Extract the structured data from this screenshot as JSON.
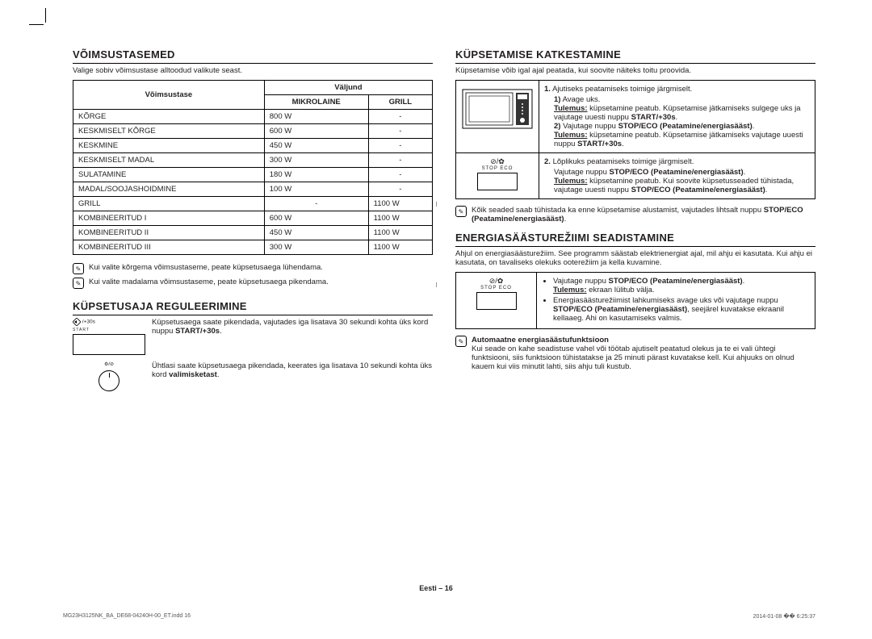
{
  "left": {
    "section1": {
      "title": "VÕIMSUSTASEMED",
      "intro": "Valige sobiv võimsustase alltoodud valikute seast.",
      "table": {
        "colgroup_header": "Väljund",
        "headers": [
          "Võimsustase",
          "MIKROLAINE",
          "GRILL"
        ],
        "rows": [
          [
            "KÕRGE",
            "800 W",
            "-"
          ],
          [
            "KESKMISELT KÕRGE",
            "600 W",
            "-"
          ],
          [
            "KESKMINE",
            "450 W",
            "-"
          ],
          [
            "KESKMISELT MADAL",
            "300 W",
            "-"
          ],
          [
            "SULATAMINE",
            "180 W",
            "-"
          ],
          [
            "MADAL/SOOJASHOIDMINE",
            "100 W",
            "-"
          ],
          [
            "GRILL",
            "-",
            "1100 W"
          ],
          [
            "KOMBINEERITUD I",
            "600 W",
            "1100 W"
          ],
          [
            "KOMBINEERITUD II",
            "450 W",
            "1100 W"
          ],
          [
            "KOMBINEERITUD III",
            "300 W",
            "1100 W"
          ]
        ]
      },
      "notes": [
        "Kui valite kõrgema võimsustaseme, peate küpsetusaega lühendama.",
        "Kui valite madalama võimsustaseme, peate küpsetusaega pikendama."
      ]
    },
    "section2": {
      "title": "KÜPSETUSAJA REGULEERIMINE",
      "step1": {
        "label": "+30s",
        "sublabel": "START",
        "text_a": "Küpsetusaega saate pikendada, vajutades iga lisatava 30 sekundi kohta üks kord nuppu ",
        "text_b": "START/+30s",
        "text_c": "."
      },
      "step2": {
        "text_a": "Ühtlasi saate küpsetusaega pikendada, keerates iga lisatava 10 sekundi kohta üks kord ",
        "text_b": "valimisketast",
        "text_c": "."
      }
    }
  },
  "right": {
    "section1": {
      "title": "KÜPSETAMISE KATKESTAMINE",
      "intro": "Küpsetamise võib igal ajal peatada, kui soovite näiteks toitu proovida.",
      "row1": {
        "num": "1.",
        "head": "Ajutiseks peatamiseks toimige järgmiselt.",
        "item1_num": "1)",
        "item1": "Avage uks.",
        "tulemus_label": "Tulemus:",
        "tulemus_text_a": "küpsetamine peatub. Küpsetamise jätkamiseks sulgege uks ja vajutage uuesti nuppu ",
        "tulemus_text_b": "START/+30s",
        "tulemus_text_c": ".",
        "item2_num": "2)",
        "item2_a": "Vajutage nuppu ",
        "item2_b": "STOP/ECO (Peatamine/energiasääst)",
        "item2_c": ".",
        "tulemus2_label": "Tulemus:",
        "tulemus2_text_a": "küpsetamine peatub. Küpsetamise jätkamiseks vajutage uuesti nuppu ",
        "tulemus2_text_b": "START/+30s",
        "tulemus2_text_c": "."
      },
      "row2": {
        "num": "2.",
        "head": "Lõplikuks peatamiseks toimige järgmiselt.",
        "line_a": "Vajutage nuppu ",
        "line_b": "STOP/ECO (Peatamine/energiasääst)",
        "line_c": ".",
        "tulemus_label": "Tulemus:",
        "tulemus_text_a": "küpsetamine peatub. Kui soovite küpsetusseaded tühistada, vajutage uuesti nuppu ",
        "tulemus_text_b": "STOP/ECO (Peatamine/energiasääst)",
        "tulemus_text_c": "."
      },
      "note_a": "Kõik seaded saab tühistada ka enne küpsetamise alustamist, vajutades lihtsalt nuppu ",
      "note_b": "STOP/ECO (Peatamine/energiasääst)",
      "note_c": "."
    },
    "section2": {
      "title": "ENERGIASÄÄSTUREŽIIMI SEADISTAMINE",
      "intro": "Ahjul on energiasäästurežiim. See programm säästab elektrienergiat ajal, mil ahju ei kasutata. Kui ahju ei kasutata, on tavaliseks olekuks ooterežiim ja kella kuvamine.",
      "bullet1_a": "Vajutage nuppu ",
      "bullet1_b": "STOP/ECO (Peatamine/energiasääst)",
      "bullet1_c": ".",
      "bullet1_tulemus_label": "Tulemus:",
      "bullet1_tulemus": "ekraan lülitub välja.",
      "bullet2_a": "Energiasäästurežiimist lahkumiseks avage uks või vajutage nuppu ",
      "bullet2_b": "STOP/ECO (Peatamine/energiasääst)",
      "bullet2_c": ", seejärel kuvatakse ekraanil kellaaeg. Ahi on kasutamiseks valmis.",
      "auto_title": "Automaatne energiasäästufunktsioon",
      "auto_text": "Kui seade on kahe seadistuse vahel või töötab ajutiselt peatatud olekus ja te ei vali ühtegi funktsiooni, siis funktsioon tühistatakse ja 25 minuti pärast kuvatakse kell. Kui ahjuuks on olnud kauem kui viis minutit lahti, siis ahju tuli kustub."
    }
  },
  "stop_eco_label": "STOP  ECO",
  "footer": "Eesti – 16",
  "imprint": {
    "left": "MG23H3125NK_BA_DE68-04240H-00_ET.indd   16",
    "right": "2014-01-08   �� 6:25:37"
  }
}
